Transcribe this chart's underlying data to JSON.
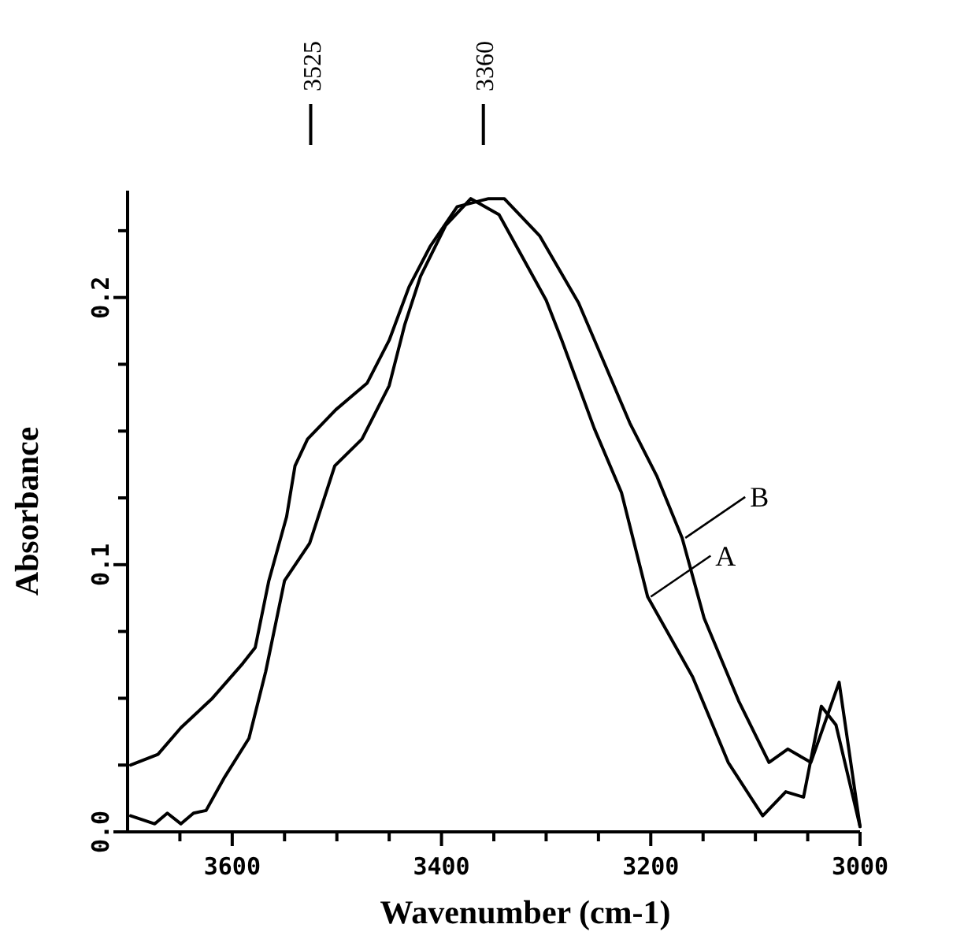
{
  "chart_data": {
    "type": "line",
    "xlabel": "Wavenumber (cm-1)",
    "ylabel": "Absorbance",
    "xlim": [
      3700,
      3000
    ],
    "xticks": [
      {
        "value": 3650,
        "label": null
      },
      {
        "value": 3600,
        "label": "3600"
      },
      {
        "value": 3550,
        "label": null
      },
      {
        "value": 3500,
        "label": null
      },
      {
        "value": 3450,
        "label": null
      },
      {
        "value": 3400,
        "label": "3400"
      },
      {
        "value": 3350,
        "label": null
      },
      {
        "value": 3300,
        "label": null
      },
      {
        "value": 3250,
        "label": null
      },
      {
        "value": 3200,
        "label": "3200"
      },
      {
        "value": 3150,
        "label": null
      },
      {
        "value": 3100,
        "label": null
      },
      {
        "value": 3050,
        "label": null
      },
      {
        "value": 3000,
        "label": "3000"
      }
    ],
    "ylim": [
      0,
      0.24
    ],
    "yticks": [
      {
        "value": 0,
        "label": "0.0"
      },
      {
        "value": 0.025,
        "label": null
      },
      {
        "value": 0.05,
        "label": null
      },
      {
        "value": 0.075,
        "label": null
      },
      0.1,
      {
        "value": 0.125,
        "label": null
      },
      {
        "value": 0.15,
        "label": null
      },
      {
        "value": 0.175,
        "label": null
      },
      0.2,
      {
        "value": 0.225,
        "label": null
      }
    ],
    "grid": false,
    "marker": "none",
    "line_style": "solid",
    "ref_lines": [
      {
        "axis": "x",
        "value": 3525,
        "label": "3525"
      },
      {
        "axis": "x",
        "value": 3360,
        "label": "3360"
      }
    ],
    "series": [
      {
        "name": "B",
        "color": "#000000",
        "x": [
          3697,
          3671,
          3649,
          3619,
          3590,
          3578,
          3565,
          3548,
          3540,
          3528,
          3501,
          3471,
          3450,
          3431,
          3411,
          3385,
          3355,
          3340,
          3306,
          3269,
          3245,
          3220,
          3194,
          3170,
          3149,
          3116,
          3087,
          3069,
          3047,
          3020,
          3000
        ],
        "values": [
          0.025,
          0.029,
          0.039,
          0.05,
          0.063,
          0.069,
          0.094,
          0.118,
          0.137,
          0.147,
          0.158,
          0.168,
          0.184,
          0.204,
          0.219,
          0.234,
          0.237,
          0.237,
          0.223,
          0.198,
          0.176,
          0.153,
          0.133,
          0.11,
          0.08,
          0.049,
          0.026,
          0.031,
          0.026,
          0.056,
          0.002
        ]
      },
      {
        "name": "A",
        "color": "#000000",
        "x": [
          3697,
          3674,
          3662,
          3649,
          3637,
          3625,
          3608,
          3584,
          3568,
          3550,
          3526,
          3502,
          3476,
          3450,
          3435,
          3420,
          3396,
          3372,
          3345,
          3300,
          3285,
          3254,
          3228,
          3203,
          3160,
          3126,
          3093,
          3071,
          3054,
          3037,
          3023,
          3000
        ],
        "values": [
          0.006,
          0.003,
          0.007,
          0.003,
          0.007,
          0.008,
          0.02,
          0.035,
          0.06,
          0.094,
          0.108,
          0.137,
          0.147,
          0.167,
          0.19,
          0.208,
          0.227,
          0.237,
          0.231,
          0.199,
          0.184,
          0.151,
          0.127,
          0.088,
          0.058,
          0.026,
          0.006,
          0.015,
          0.013,
          0.047,
          0.04,
          0.002
        ]
      }
    ]
  }
}
